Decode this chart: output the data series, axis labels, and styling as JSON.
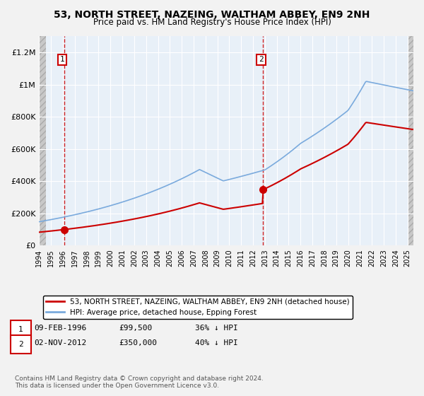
{
  "title": "53, NORTH STREET, NAZEING, WALTHAM ABBEY, EN9 2NH",
  "subtitle": "Price paid vs. HM Land Registry's House Price Index (HPI)",
  "background_color": "#e8f0f8",
  "plot_bg_color": "#e8f0f8",
  "ylim": [
    0,
    1300000
  ],
  "xlim_start": 1994.0,
  "xlim_end": 2025.5,
  "yticks": [
    0,
    200000,
    400000,
    600000,
    800000,
    1000000,
    1200000
  ],
  "ytick_labels": [
    "£0",
    "£200K",
    "£400K",
    "£600K",
    "£800K",
    "£1M",
    "£1.2M"
  ],
  "xticks": [
    1994,
    1995,
    1996,
    1997,
    1998,
    1999,
    2000,
    2001,
    2002,
    2003,
    2004,
    2005,
    2006,
    2007,
    2008,
    2009,
    2010,
    2011,
    2012,
    2013,
    2014,
    2015,
    2016,
    2017,
    2018,
    2019,
    2020,
    2021,
    2022,
    2023,
    2024,
    2025
  ],
  "sale1_x": 1996.1,
  "sale1_y": 99500,
  "sale2_x": 2012.83,
  "sale2_y": 350000,
  "sale_color": "#cc0000",
  "hpi_line_color": "#7aaadd",
  "legend_sale": "53, NORTH STREET, NAZEING, WALTHAM ABBEY, EN9 2NH (detached house)",
  "legend_hpi": "HPI: Average price, detached house, Epping Forest",
  "footer": "Contains HM Land Registry data © Crown copyright and database right 2024.\nThis data is licensed under the Open Government Licence v3.0."
}
